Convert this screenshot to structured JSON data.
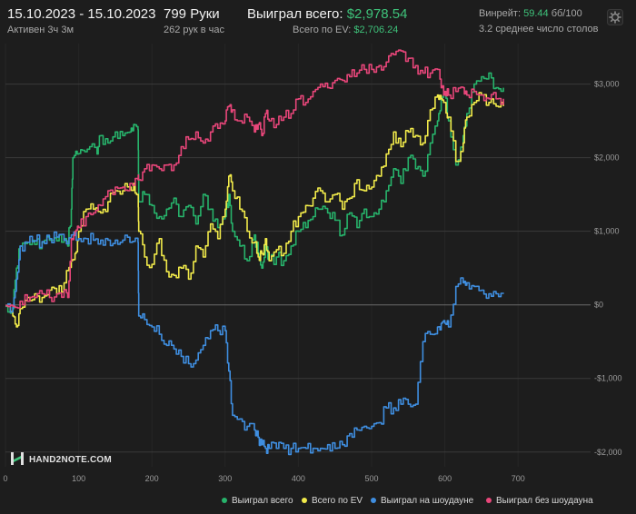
{
  "header": {
    "date_range": "15.10.2023 - 15.10.2023",
    "active_time": "Активен 3ч 3м",
    "hands": "799 Руки",
    "hands_per_hour": "262 рук в час",
    "won_total_label": "Выиграл всего:",
    "won_total_value": "$2,978.54",
    "ev_label": "Всего по EV:",
    "ev_value": "$2,706.24",
    "winrate_label": "Винрейт:",
    "winrate_value": "59.44",
    "winrate_unit": "бб/100",
    "tables_avg": "3.2 среднее число столов"
  },
  "logo": {
    "text": "HAND2NOTE.COM"
  },
  "colors": {
    "background": "#1d1d1d",
    "green": "#27b36b",
    "yellow": "#f1ea4a",
    "blue": "#3f8ee0",
    "pink": "#e8467a"
  },
  "chart_data": {
    "type": "line",
    "xlabel": "",
    "ylabel": "",
    "xlim": [
      0,
      799
    ],
    "ylim": [
      -2200,
      3550
    ],
    "x_ticks": [
      0,
      100,
      200,
      300,
      400,
      500,
      600,
      700
    ],
    "y_ticks": [
      -2000,
      -1000,
      0,
      1000,
      2000,
      3000
    ],
    "y_tick_labels": [
      "-$2,000",
      "-$1,000",
      "$0",
      "$1,000",
      "$2,000",
      "$3,000"
    ],
    "grid": true,
    "legend_position": "bottom-right",
    "series": [
      {
        "name": "Выиграл всего",
        "color": "#27b36b",
        "points": [
          [
            0,
            -20
          ],
          [
            10,
            -50
          ],
          [
            15,
            500
          ],
          [
            20,
            800
          ],
          [
            30,
            850
          ],
          [
            40,
            820
          ],
          [
            50,
            850
          ],
          [
            60,
            880
          ],
          [
            70,
            870
          ],
          [
            80,
            900
          ],
          [
            85,
            800
          ],
          [
            90,
            1300
          ],
          [
            92,
            2000
          ],
          [
            98,
            2050
          ],
          [
            105,
            2100
          ],
          [
            115,
            2150
          ],
          [
            125,
            2050
          ],
          [
            130,
            2300
          ],
          [
            140,
            2200
          ],
          [
            150,
            2350
          ],
          [
            160,
            2300
          ],
          [
            170,
            2350
          ],
          [
            175,
            2450
          ],
          [
            181,
            2380
          ],
          [
            182,
            1400
          ],
          [
            190,
            1500
          ],
          [
            200,
            1350
          ],
          [
            210,
            1200
          ],
          [
            220,
            1300
          ],
          [
            230,
            1450
          ],
          [
            240,
            1200
          ],
          [
            250,
            1350
          ],
          [
            260,
            1100
          ],
          [
            270,
            1500
          ],
          [
            280,
            1300
          ],
          [
            290,
            1050
          ],
          [
            300,
            1200
          ],
          [
            305,
            1500
          ],
          [
            310,
            1000
          ],
          [
            320,
            800
          ],
          [
            330,
            600
          ],
          [
            340,
            950
          ],
          [
            345,
            700
          ],
          [
            350,
            500
          ],
          [
            355,
            800
          ],
          [
            360,
            600
          ],
          [
            370,
            650
          ],
          [
            380,
            600
          ],
          [
            390,
            800
          ],
          [
            400,
            1000
          ],
          [
            410,
            1050
          ],
          [
            420,
            1200
          ],
          [
            430,
            1300
          ],
          [
            440,
            1250
          ],
          [
            450,
            1150
          ],
          [
            460,
            950
          ],
          [
            470,
            1250
          ],
          [
            480,
            1050
          ],
          [
            490,
            1300
          ],
          [
            500,
            1200
          ],
          [
            510,
            1300
          ],
          [
            520,
            1550
          ],
          [
            530,
            1850
          ],
          [
            540,
            1650
          ],
          [
            550,
            2000
          ],
          [
            560,
            1850
          ],
          [
            570,
            1750
          ],
          [
            580,
            2200
          ],
          [
            590,
            2500
          ],
          [
            595,
            2800
          ],
          [
            600,
            2850
          ],
          [
            605,
            2500
          ],
          [
            615,
            1900
          ],
          [
            625,
            2300
          ],
          [
            630,
            2600
          ],
          [
            640,
            3000
          ],
          [
            650,
            3100
          ],
          [
            660,
            3150
          ],
          [
            670,
            2950
          ],
          [
            680,
            2950
          ]
        ]
      },
      {
        "name": "Всего по EV",
        "color": "#f1ea4a",
        "points": [
          [
            0,
            -10
          ],
          [
            10,
            -150
          ],
          [
            15,
            -300
          ],
          [
            20,
            -50
          ],
          [
            30,
            100
          ],
          [
            40,
            150
          ],
          [
            50,
            100
          ],
          [
            60,
            200
          ],
          [
            70,
            150
          ],
          [
            80,
            300
          ],
          [
            90,
            600
          ],
          [
            95,
            700
          ],
          [
            100,
            1000
          ],
          [
            110,
            1300
          ],
          [
            120,
            1300
          ],
          [
            130,
            1250
          ],
          [
            140,
            1400
          ],
          [
            150,
            1550
          ],
          [
            160,
            1550
          ],
          [
            170,
            1600
          ],
          [
            175,
            1650
          ],
          [
            181,
            1500
          ],
          [
            182,
            1000
          ],
          [
            190,
            650
          ],
          [
            200,
            550
          ],
          [
            210,
            900
          ],
          [
            220,
            450
          ],
          [
            230,
            400
          ],
          [
            240,
            500
          ],
          [
            250,
            350
          ],
          [
            260,
            800
          ],
          [
            270,
            650
          ],
          [
            280,
            1100
          ],
          [
            290,
            900
          ],
          [
            300,
            1300
          ],
          [
            305,
            1750
          ],
          [
            310,
            1550
          ],
          [
            320,
            1300
          ],
          [
            330,
            1000
          ],
          [
            340,
            850
          ],
          [
            345,
            650
          ],
          [
            350,
            700
          ],
          [
            355,
            900
          ],
          [
            360,
            600
          ],
          [
            370,
            750
          ],
          [
            380,
            700
          ],
          [
            390,
            1000
          ],
          [
            400,
            1200
          ],
          [
            410,
            1350
          ],
          [
            420,
            1450
          ],
          [
            430,
            1550
          ],
          [
            440,
            1400
          ],
          [
            450,
            1500
          ],
          [
            460,
            1300
          ],
          [
            470,
            1450
          ],
          [
            480,
            1700
          ],
          [
            490,
            1550
          ],
          [
            500,
            1600
          ],
          [
            510,
            1750
          ],
          [
            520,
            2050
          ],
          [
            530,
            2350
          ],
          [
            540,
            2150
          ],
          [
            550,
            2350
          ],
          [
            560,
            2300
          ],
          [
            570,
            2200
          ],
          [
            580,
            2650
          ],
          [
            590,
            2850
          ],
          [
            595,
            2800
          ],
          [
            600,
            2750
          ],
          [
            605,
            2550
          ],
          [
            615,
            1950
          ],
          [
            625,
            2200
          ],
          [
            630,
            2550
          ],
          [
            640,
            2750
          ],
          [
            650,
            2850
          ],
          [
            660,
            2750
          ],
          [
            670,
            2700
          ],
          [
            680,
            2700
          ]
        ]
      },
      {
        "name": "Выиграл на шоудауне",
        "color": "#3f8ee0",
        "points": [
          [
            0,
            -10
          ],
          [
            10,
            -30
          ],
          [
            15,
            350
          ],
          [
            20,
            800
          ],
          [
            30,
            850
          ],
          [
            40,
            870
          ],
          [
            50,
            860
          ],
          [
            60,
            900
          ],
          [
            70,
            920
          ],
          [
            80,
            880
          ],
          [
            90,
            950
          ],
          [
            100,
            900
          ],
          [
            110,
            900
          ],
          [
            120,
            880
          ],
          [
            130,
            880
          ],
          [
            140,
            880
          ],
          [
            150,
            880
          ],
          [
            160,
            880
          ],
          [
            170,
            850
          ],
          [
            181,
            850
          ],
          [
            182,
            -150
          ],
          [
            190,
            -200
          ],
          [
            200,
            -300
          ],
          [
            210,
            -400
          ],
          [
            220,
            -550
          ],
          [
            230,
            -600
          ],
          [
            240,
            -700
          ],
          [
            250,
            -800
          ],
          [
            260,
            -750
          ],
          [
            270,
            -550
          ],
          [
            280,
            -350
          ],
          [
            290,
            -350
          ],
          [
            300,
            -350
          ],
          [
            305,
            -900
          ],
          [
            310,
            -1500
          ],
          [
            320,
            -1550
          ],
          [
            330,
            -1650
          ],
          [
            340,
            -1700
          ],
          [
            345,
            -1800
          ],
          [
            350,
            -1900
          ],
          [
            355,
            -1950
          ],
          [
            360,
            -1950
          ],
          [
            370,
            -1950
          ],
          [
            380,
            -1950
          ],
          [
            390,
            -1950
          ],
          [
            400,
            -1950
          ],
          [
            410,
            -1950
          ],
          [
            420,
            -1950
          ],
          [
            430,
            -1950
          ],
          [
            440,
            -1900
          ],
          [
            450,
            -1950
          ],
          [
            460,
            -1900
          ],
          [
            470,
            -1750
          ],
          [
            480,
            -1700
          ],
          [
            490,
            -1650
          ],
          [
            500,
            -1650
          ],
          [
            510,
            -1600
          ],
          [
            520,
            -1400
          ],
          [
            530,
            -1400
          ],
          [
            540,
            -1350
          ],
          [
            550,
            -1350
          ],
          [
            560,
            -1350
          ],
          [
            570,
            -500
          ],
          [
            580,
            -400
          ],
          [
            590,
            -300
          ],
          [
            595,
            -250
          ],
          [
            600,
            -250
          ],
          [
            605,
            -300
          ],
          [
            615,
            250
          ],
          [
            625,
            300
          ],
          [
            630,
            300
          ],
          [
            640,
            250
          ],
          [
            650,
            200
          ],
          [
            660,
            150
          ],
          [
            670,
            150
          ],
          [
            680,
            150
          ]
        ]
      },
      {
        "name": "Выиграл без шоудауна",
        "color": "#e8467a",
        "points": [
          [
            0,
            -10
          ],
          [
            10,
            -20
          ],
          [
            20,
            50
          ],
          [
            30,
            50
          ],
          [
            40,
            100
          ],
          [
            50,
            150
          ],
          [
            60,
            100
          ],
          [
            70,
            150
          ],
          [
            80,
            200
          ],
          [
            85,
            100
          ],
          [
            90,
            900
          ],
          [
            95,
            1000
          ],
          [
            100,
            1050
          ],
          [
            110,
            1200
          ],
          [
            120,
            1250
          ],
          [
            130,
            1350
          ],
          [
            140,
            1550
          ],
          [
            150,
            1600
          ],
          [
            160,
            1600
          ],
          [
            170,
            1650
          ],
          [
            181,
            1700
          ],
          [
            182,
            1700
          ],
          [
            190,
            1850
          ],
          [
            200,
            1900
          ],
          [
            210,
            1850
          ],
          [
            220,
            1900
          ],
          [
            230,
            1900
          ],
          [
            240,
            2150
          ],
          [
            250,
            2250
          ],
          [
            260,
            2350
          ],
          [
            270,
            2200
          ],
          [
            280,
            2350
          ],
          [
            290,
            2400
          ],
          [
            300,
            2500
          ],
          [
            305,
            2700
          ],
          [
            310,
            2650
          ],
          [
            320,
            2500
          ],
          [
            330,
            2550
          ],
          [
            340,
            2350
          ],
          [
            345,
            2450
          ],
          [
            350,
            2300
          ],
          [
            355,
            2600
          ],
          [
            360,
            2500
          ],
          [
            370,
            2450
          ],
          [
            380,
            2550
          ],
          [
            390,
            2600
          ],
          [
            400,
            2800
          ],
          [
            410,
            2750
          ],
          [
            420,
            2900
          ],
          [
            430,
            3000
          ],
          [
            440,
            2950
          ],
          [
            450,
            3050
          ],
          [
            460,
            3050
          ],
          [
            470,
            3100
          ],
          [
            480,
            3150
          ],
          [
            490,
            3200
          ],
          [
            500,
            3200
          ],
          [
            510,
            3250
          ],
          [
            520,
            3300
          ],
          [
            530,
            3400
          ],
          [
            540,
            3450
          ],
          [
            550,
            3350
          ],
          [
            560,
            3250
          ],
          [
            570,
            3150
          ],
          [
            580,
            3150
          ],
          [
            590,
            3200
          ],
          [
            595,
            2950
          ],
          [
            600,
            2900
          ],
          [
            605,
            2850
          ],
          [
            615,
            2900
          ],
          [
            625,
            2950
          ],
          [
            630,
            2850
          ],
          [
            640,
            2900
          ],
          [
            650,
            2850
          ],
          [
            660,
            2800
          ],
          [
            670,
            2800
          ],
          [
            680,
            2800
          ]
        ]
      }
    ]
  }
}
